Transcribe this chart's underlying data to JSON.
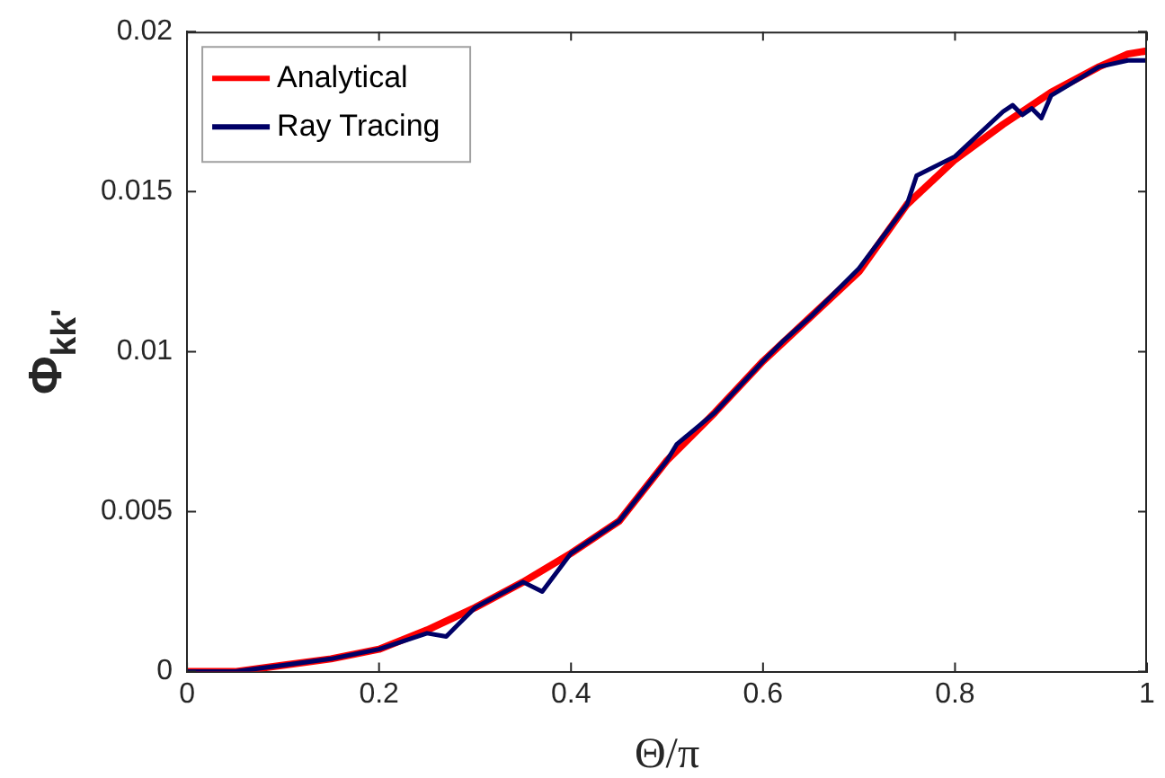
{
  "chart_data": {
    "type": "line",
    "xlabel": "Θ/π",
    "ylabel": "Φ$_{kk'}$",
    "xlim": [
      0,
      1
    ],
    "xticks": [
      0,
      0.2,
      0.4,
      0.6,
      0.8,
      1
    ],
    "ylim": [
      0,
      0.02
    ],
    "yticks": [
      0,
      0.005,
      0.01,
      0.015,
      0.02
    ],
    "grid": false,
    "legend": "top left",
    "marker": "none",
    "line_style": "solid",
    "series": [
      {
        "name": "Analytical",
        "color": "#ff0000",
        "x": [
          0,
          0.05,
          0.1,
          0.15,
          0.2,
          0.25,
          0.3,
          0.35,
          0.4,
          0.45,
          0.5,
          0.55,
          0.6,
          0.65,
          0.7,
          0.75,
          0.8,
          0.85,
          0.9,
          0.95,
          0.98,
          1
        ],
        "values": [
          0,
          0,
          0.0002,
          0.0004,
          0.0007,
          0.0013,
          0.002,
          0.0028,
          0.0037,
          0.0047,
          0.0066,
          0.0081,
          0.0097,
          0.0111,
          0.0125,
          0.0146,
          0.016,
          0.0171,
          0.0181,
          0.0189,
          0.0193,
          0.0194
        ]
      },
      {
        "name": "Ray Tracing",
        "color": "#000066",
        "x": [
          0,
          0.05,
          0.1,
          0.15,
          0.2,
          0.25,
          0.27,
          0.3,
          0.35,
          0.37,
          0.4,
          0.45,
          0.5,
          0.51,
          0.55,
          0.6,
          0.62,
          0.65,
          0.7,
          0.75,
          0.76,
          0.8,
          0.85,
          0.86,
          0.87,
          0.88,
          0.89,
          0.9,
          0.95,
          0.98,
          1
        ],
        "values": [
          0,
          0,
          0.0002,
          0.0004,
          0.0007,
          0.0012,
          0.0011,
          0.002,
          0.0028,
          0.0025,
          0.0037,
          0.0047,
          0.0066,
          0.0071,
          0.0081,
          0.0097,
          0.0103,
          0.0111,
          0.0126,
          0.0146,
          0.0155,
          0.0161,
          0.0175,
          0.0177,
          0.0174,
          0.0176,
          0.0173,
          0.018,
          0.0189,
          0.0191,
          0.0191
        ]
      }
    ]
  }
}
